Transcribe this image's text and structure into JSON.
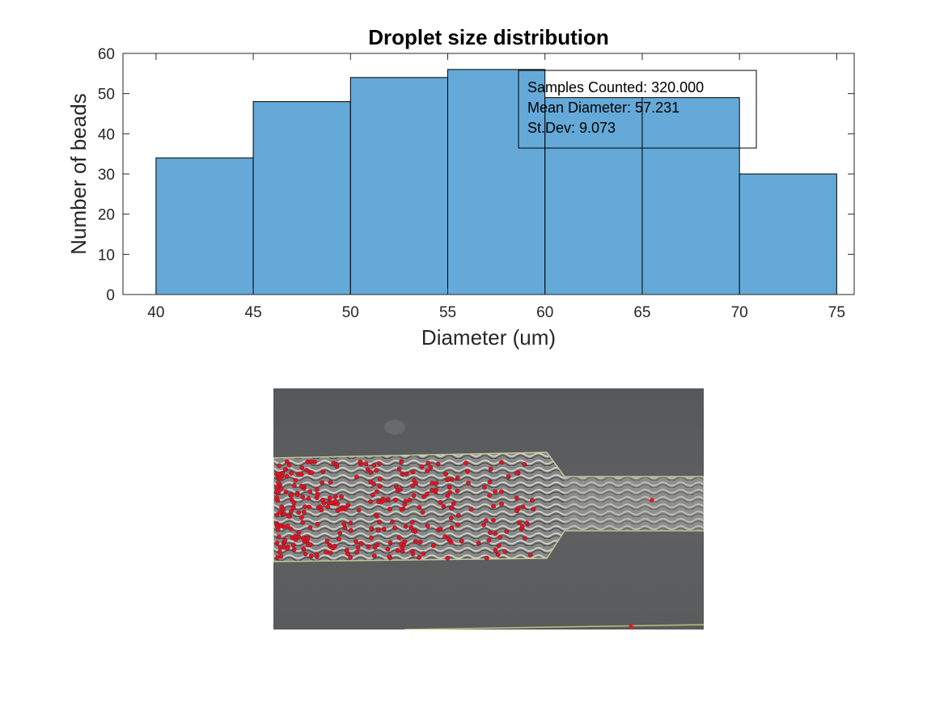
{
  "chart_data": {
    "type": "bar",
    "title": "Droplet size distribution",
    "xlabel": "Diameter (um)",
    "ylabel": "Number of beads",
    "bin_edges": [
      40,
      45,
      50,
      55,
      60,
      65,
      70,
      75
    ],
    "values": [
      34,
      48,
      54,
      56,
      49,
      49,
      30
    ],
    "xlim": [
      38.3,
      75.9
    ],
    "ylim": [
      0,
      60
    ],
    "xticks": [
      "40",
      "45",
      "50",
      "55",
      "60",
      "65",
      "70",
      "75"
    ],
    "yticks": [
      "0",
      "10",
      "20",
      "30",
      "40",
      "50",
      "60"
    ],
    "bar_color": "#64a9d8",
    "grid": false,
    "annotation": {
      "lines": [
        "Samples Counted: 320.000",
        "Mean Diameter: 57.231",
        "St.Dev: 9.073"
      ],
      "placement": "top-right"
    }
  },
  "image_panel": {
    "description_icon": "microscope-image",
    "channel_color": "#5c5d5e",
    "marker_color": "#e8141c"
  }
}
